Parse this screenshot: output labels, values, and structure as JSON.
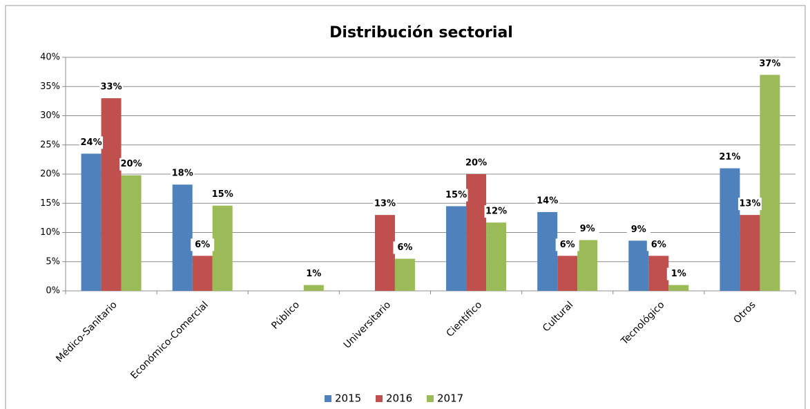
{
  "chart_data": {
    "type": "bar",
    "title": "Distribución sectorial",
    "categories": [
      "Médico-Sanitario",
      "Económico-Comercial",
      "Público",
      "Universitario",
      "Científico",
      "Cultural",
      "Tecnológico",
      "Otros"
    ],
    "series": [
      {
        "name": "2015",
        "color": "#4f81bd",
        "values": [
          23.5,
          18.2,
          null,
          null,
          14.5,
          13.5,
          8.6,
          21
        ],
        "value_labels": [
          "24%",
          "18%",
          null,
          null,
          "15%",
          "14%",
          "9%",
          "21%"
        ]
      },
      {
        "name": "2016",
        "color": "#c0504d",
        "values": [
          33,
          6,
          null,
          13,
          20,
          6,
          6,
          13
        ],
        "value_labels": [
          "33%",
          "6%",
          null,
          "13%",
          "20%",
          "6%",
          "6%",
          "13%"
        ]
      },
      {
        "name": "2017",
        "color": "#9bbb59",
        "values": [
          19.8,
          14.6,
          1,
          5.5,
          11.7,
          8.7,
          1,
          37
        ],
        "value_labels": [
          "20%",
          "15%",
          "1%",
          "6%",
          "12%",
          "9%",
          "1%",
          "37%"
        ]
      }
    ],
    "ylim": [
      0,
      40
    ],
    "yticks": [
      {
        "value": 0,
        "label": "0%"
      },
      {
        "value": 5,
        "label": "5%"
      },
      {
        "value": 10,
        "label": "10%"
      },
      {
        "value": 15,
        "label": "15%"
      },
      {
        "value": 20,
        "label": "20%"
      },
      {
        "value": 25,
        "label": "25%"
      },
      {
        "value": 30,
        "label": "30%"
      },
      {
        "value": 35,
        "label": "35%"
      },
      {
        "value": 40,
        "label": "40%"
      }
    ],
    "grid": true,
    "legend": "bottom"
  }
}
